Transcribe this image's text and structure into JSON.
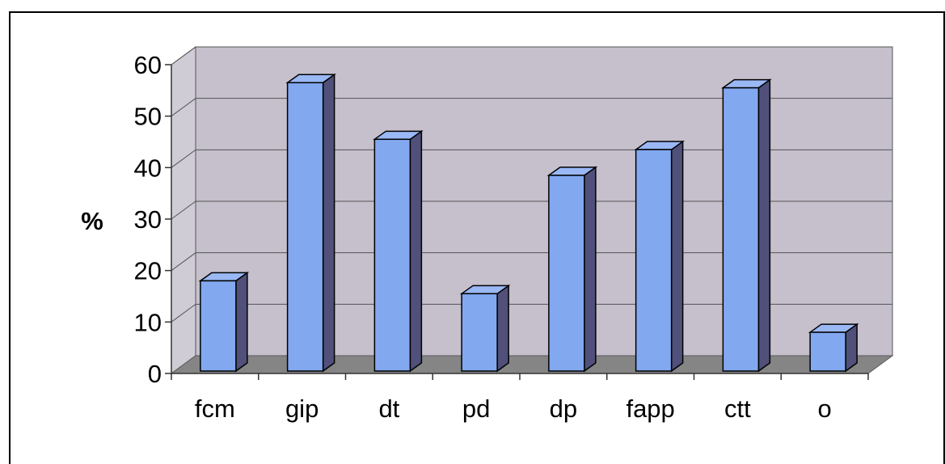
{
  "chart_data": {
    "type": "bar",
    "style": "3d-column",
    "categories": [
      "fcm",
      "gip",
      "dt",
      "pd",
      "dp",
      "fapp",
      "ctt",
      "o"
    ],
    "values": [
      18,
      56.5,
      45.5,
      15.5,
      38.5,
      43.5,
      55.5,
      8
    ],
    "title": "",
    "xlabel": "",
    "ylabel": "%",
    "ylim": [
      0,
      60
    ],
    "yticks": [
      0,
      10,
      20,
      30,
      40,
      50,
      60
    ],
    "grid": true,
    "legend": "none",
    "colors": {
      "bar_front": "#82a8f0",
      "bar_side": "#50507a",
      "bar_top": "#9ab8f4",
      "back_wall": "#c5c0cc",
      "side_wall": "#d0ccd6",
      "floor": "#858585",
      "gridline": "#555555"
    }
  }
}
